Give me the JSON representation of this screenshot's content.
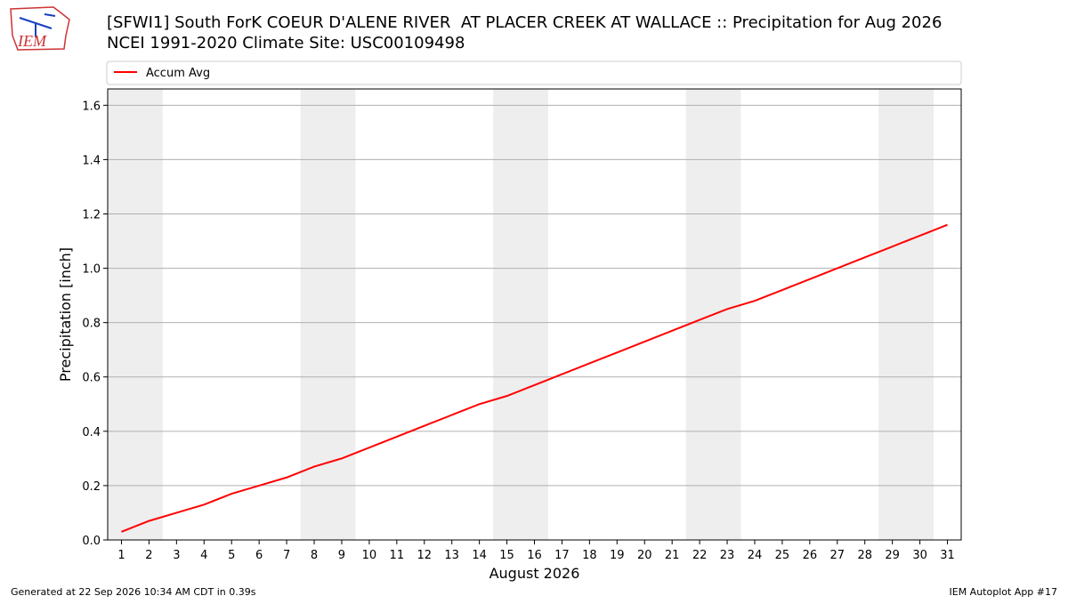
{
  "chart_data": {
    "type": "line",
    "title": "[SFWI1] South ForK COEUR D'ALENE RIVER  AT PLACER CREEK AT WALLACE :: Precipitation for Aug 2026",
    "subtitle": "NCEI 1991-2020 Climate Site: USC00109498",
    "logo_text": "IEM",
    "x_label": "August 2026",
    "y_label": "Precipitation [inch]",
    "x": [
      1,
      2,
      3,
      4,
      5,
      6,
      7,
      8,
      9,
      10,
      11,
      12,
      13,
      14,
      15,
      16,
      17,
      18,
      19,
      20,
      21,
      22,
      23,
      24,
      25,
      26,
      27,
      28,
      29,
      30,
      31
    ],
    "series": [
      {
        "name": "Accum Avg",
        "color": "#ff0000",
        "values": [
          0.03,
          0.07,
          0.1,
          0.13,
          0.17,
          0.2,
          0.23,
          0.27,
          0.3,
          0.34,
          0.38,
          0.42,
          0.46,
          0.5,
          0.53,
          0.57,
          0.61,
          0.65,
          0.69,
          0.73,
          0.77,
          0.81,
          0.85,
          0.88,
          0.92,
          0.96,
          1.0,
          1.04,
          1.08,
          1.12,
          1.16
        ]
      }
    ],
    "shaded_days": [
      [
        1,
        2
      ],
      [
        8,
        9
      ],
      [
        15,
        16
      ],
      [
        22,
        23
      ],
      [
        29,
        30
      ]
    ],
    "shade_color": "#eeeeee",
    "xlim": [
      0.5,
      31.5
    ],
    "xticks": [
      1,
      2,
      3,
      4,
      5,
      6,
      7,
      8,
      9,
      10,
      11,
      12,
      13,
      14,
      15,
      16,
      17,
      18,
      19,
      20,
      21,
      22,
      23,
      24,
      25,
      26,
      27,
      28,
      29,
      30,
      31
    ],
    "ylim": [
      0,
      1.66
    ],
    "yticks": [
      {
        "value": 0,
        "label": "0.0"
      },
      {
        "value": 0.2,
        "label": "0.2"
      },
      {
        "value": 0.4,
        "label": "0.4"
      },
      {
        "value": 0.6,
        "label": "0.6"
      },
      {
        "value": 0.8,
        "label": "0.8"
      },
      {
        "value": 1,
        "label": "1.0"
      },
      {
        "value": 1.2,
        "label": "1.2"
      },
      {
        "value": 1.4,
        "label": "1.4"
      },
      {
        "value": 1.6,
        "label": "1.6"
      }
    ],
    "grid": "y",
    "legend": "top",
    "footer_left": "Generated at 22 Sep 2026 10:34 AM CDT in 0.39s",
    "footer_right": "IEM Autoplot App #17"
  }
}
